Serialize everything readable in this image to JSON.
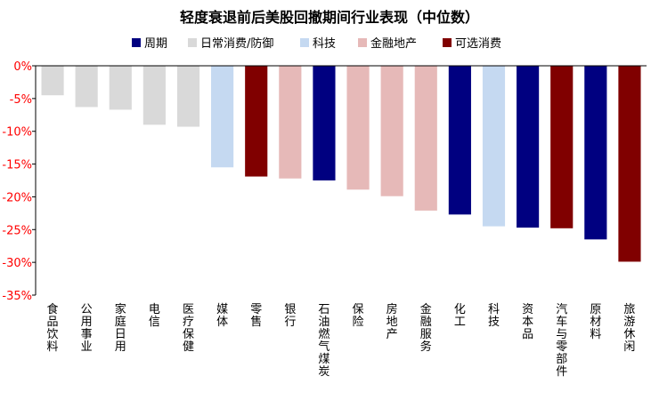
{
  "chart_data": {
    "type": "bar",
    "title": "轻度衰退前后美股回撤期间行业表现（中位数）",
    "legend_position": "top",
    "grid": false,
    "ylim": [
      -35,
      0
    ],
    "yticks": [
      0,
      -5,
      -10,
      -15,
      -20,
      -25,
      -30,
      -35
    ],
    "ytick_labels": [
      "0%",
      "-5%",
      "-10%",
      "-15%",
      "-20%",
      "-25%",
      "-30%",
      "-35%"
    ],
    "series": [
      {
        "name": "周期",
        "color": "#000080"
      },
      {
        "name": "日常消费/防御",
        "color": "#d9d9d9"
      },
      {
        "name": "科技",
        "color": "#c5d9f1"
      },
      {
        "name": "金融地产",
        "color": "#e6b9b8"
      },
      {
        "name": "可选消费",
        "color": "#800000"
      }
    ],
    "categories": [
      "食品饮料",
      "公用事业",
      "家庭日用",
      "电信",
      "医疗保健",
      "媒体",
      "零售",
      "银行",
      "石油燃气煤炭",
      "保险",
      "房地产",
      "金融服务",
      "化工",
      "科技",
      "资本品",
      "汽车与零部件",
      "原材料",
      "旅游休闲"
    ],
    "values": [
      -4.5,
      -6.3,
      -6.7,
      -9.0,
      -9.3,
      -15.5,
      -16.9,
      -17.2,
      -17.5,
      -18.9,
      -19.9,
      -22.1,
      -22.7,
      -24.5,
      -24.7,
      -24.8,
      -26.5,
      -29.9
    ],
    "groups": [
      "日常消费/防御",
      "日常消费/防御",
      "日常消费/防御",
      "日常消费/防御",
      "日常消费/防御",
      "科技",
      "可选消费",
      "金融地产",
      "周期",
      "金融地产",
      "金融地产",
      "金融地产",
      "周期",
      "科技",
      "周期",
      "可选消费",
      "周期",
      "可选消费"
    ]
  }
}
